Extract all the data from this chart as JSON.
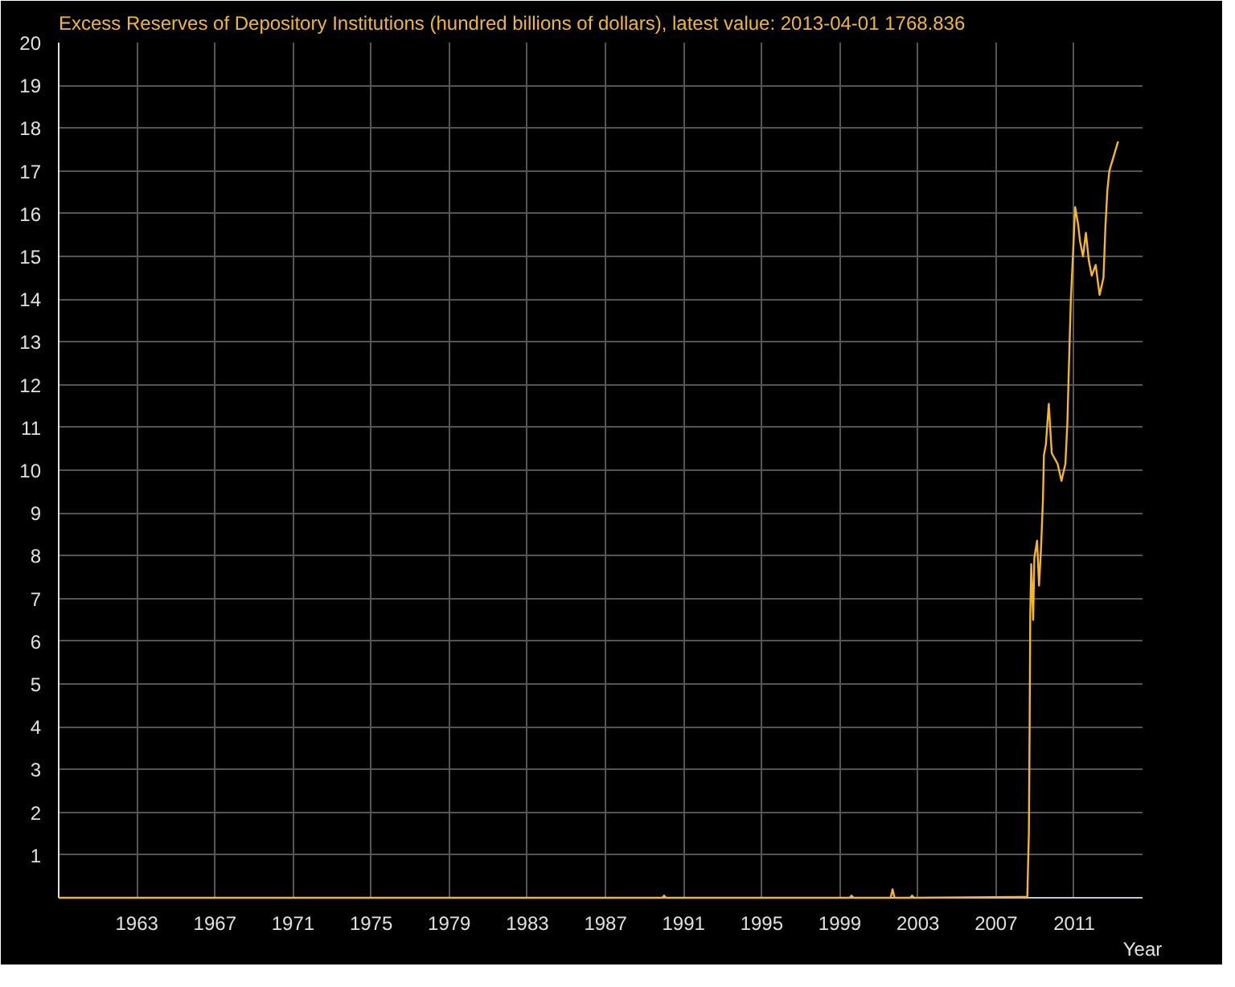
{
  "chart_data": {
    "type": "line",
    "title": "Excess Reserves of Depository Institutions (hundred billions of dollars), latest value: 2013-04-01  1768.836",
    "xlabel": "Year",
    "series": [
      {
        "color": "#f5b820",
        "x": [
          1959.0,
          1989.9,
          1990.0,
          1990.1,
          1999.5,
          1999.6,
          1999.7,
          2001.6,
          2001.7,
          2001.8,
          2002.6,
          2002.7,
          2002.8,
          2008.6,
          2008.68,
          2008.72,
          2008.75,
          2008.8,
          2008.9,
          2008.96,
          2009.1,
          2009.2,
          2009.3,
          2009.4,
          2009.45,
          2009.55,
          2009.7,
          2009.85,
          2010.15,
          2010.35,
          2010.55,
          2010.65,
          2010.75,
          2010.83,
          2010.95,
          2011.05,
          2011.2,
          2011.3,
          2011.45,
          2011.6,
          2011.75,
          2011.9,
          2012.1,
          2012.3,
          2012.5,
          2012.6,
          2012.7,
          2012.8,
          2013.25
        ],
        "values": [
          0,
          0,
          0.05,
          0,
          0,
          0.05,
          0,
          0,
          0.2,
          0,
          0,
          0.05,
          0,
          0.02,
          1.53,
          4.09,
          6.6,
          7.8,
          6.5,
          7.95,
          8.35,
          7.3,
          8.15,
          9.3,
          10.35,
          10.6,
          11.55,
          10.4,
          10.15,
          9.75,
          10.15,
          11.1,
          12.75,
          14.0,
          15.15,
          16.15,
          15.75,
          15.35,
          15.0,
          15.55,
          14.9,
          14.55,
          14.8,
          14.1,
          14.5,
          15.7,
          16.55,
          17.0,
          17.69
        ]
      }
    ],
    "xlim": [
      1959.0,
      2014.5
    ],
    "xticks": [
      1963,
      1967,
      1971,
      1975,
      1979,
      1983,
      1987,
      1991,
      1995,
      1999,
      2003,
      2007,
      2011
    ],
    "ylim": [
      0,
      20
    ],
    "yticks": [
      {
        "value": 0,
        "label": null
      },
      1,
      2,
      3,
      4,
      5,
      6,
      7,
      8,
      9,
      10,
      11,
      12,
      13,
      14,
      15,
      16,
      17,
      18,
      19,
      20
    ],
    "grid": true,
    "line_style": "solid"
  }
}
